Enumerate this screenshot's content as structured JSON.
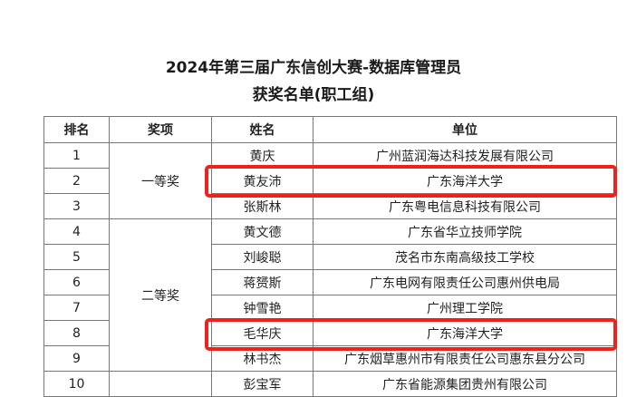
{
  "title_line1": "2024年第三届广东信创大赛-数据库管理员",
  "title_line2": "获奖名单(职工组)",
  "headers": [
    "排名",
    "奖项",
    "姓名",
    "单位"
  ],
  "awards": [
    "一等奖",
    "二等奖"
  ],
  "rows": [
    {
      "rank": "1",
      "name": "黄庆",
      "unit": "广州蓝润海达科技发展有限公司"
    },
    {
      "rank": "2",
      "name": "黄友沛",
      "unit": "广东海洋大学"
    },
    {
      "rank": "3",
      "name": "张斯林",
      "unit": "广东粤电信息科技有限公司"
    },
    {
      "rank": "4",
      "name": "黄文德",
      "unit": "广东省华立技师学院"
    },
    {
      "rank": "5",
      "name": "刘峻聪",
      "unit": "茂名市东南高级技工学校"
    },
    {
      "rank": "6",
      "name": "蒋赟斯",
      "unit": "广东电网有限责任公司惠州供电局"
    },
    {
      "rank": "7",
      "name": "钟雪艳",
      "unit": "广州理工学院"
    },
    {
      "rank": "8",
      "name": "毛华庆",
      "unit": "广东海洋大学"
    },
    {
      "rank": "9",
      "name": "林书杰",
      "unit": "广东烟草惠州市有限责任公司惠东县分公司"
    },
    {
      "rank": "10",
      "name": "彭宝军",
      "unit": "广东省能源集团贵州有限公司"
    }
  ],
  "highlight_color": "#f0201a"
}
